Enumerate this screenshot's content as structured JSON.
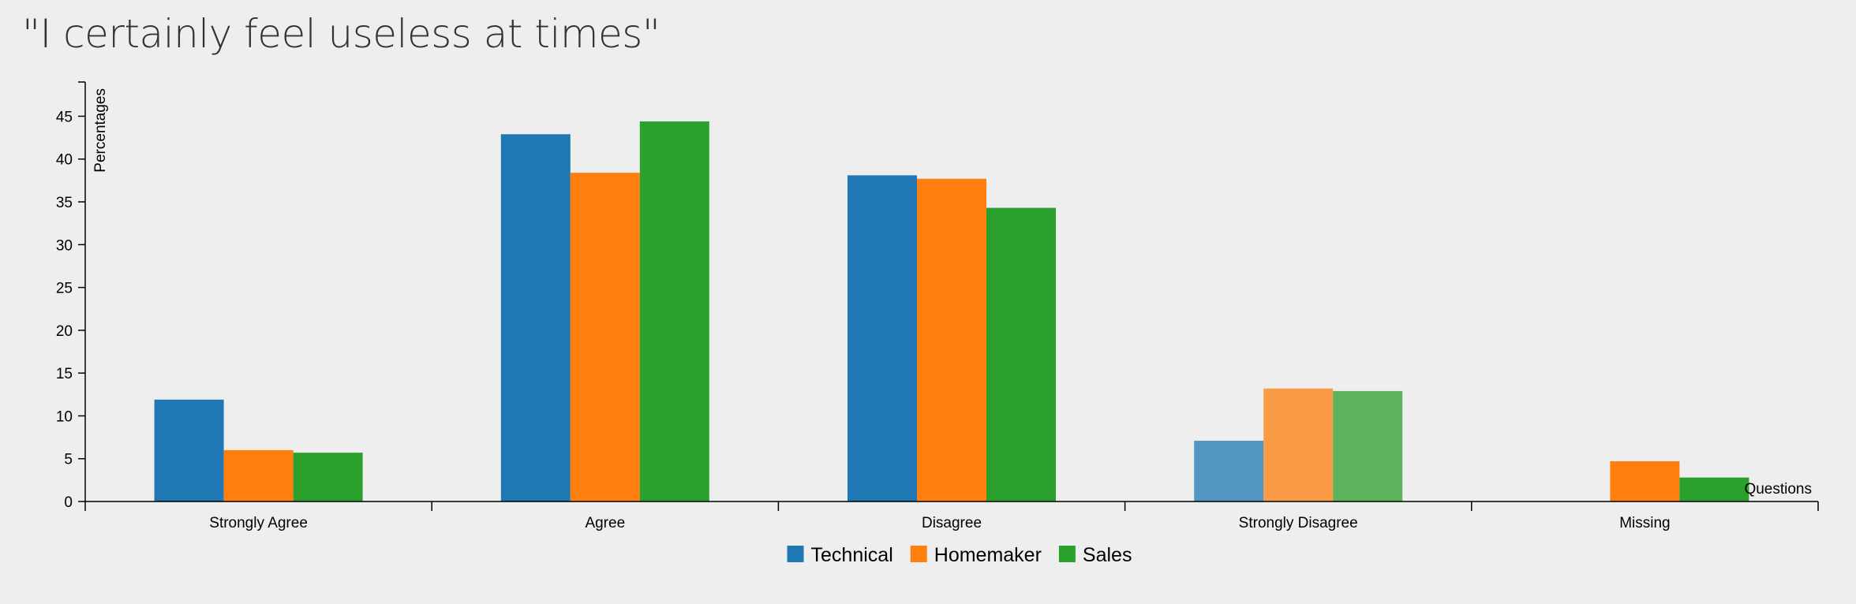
{
  "chart_data": {
    "type": "bar",
    "title": "\"I certainly feel useless at times\"",
    "xlabel": "Questions",
    "ylabel": "Percentages",
    "categories": [
      "Strongly Agree",
      "Agree",
      "Disagree",
      "Strongly Disagree",
      "Missing"
    ],
    "series": [
      {
        "name": "Technical",
        "color": "#1f77b4",
        "values": [
          11.9,
          42.9,
          38.1,
          7.1,
          0
        ]
      },
      {
        "name": "Homemaker",
        "color": "#ff7f0e",
        "values": [
          6.0,
          38.4,
          37.7,
          13.2,
          4.7
        ]
      },
      {
        "name": "Sales",
        "color": "#2ca02c",
        "values": [
          5.7,
          44.4,
          34.3,
          12.9,
          2.8
        ]
      }
    ],
    "highlighted_category": "Strongly Disagree",
    "ylim": [
      0,
      49
    ],
    "yticks": [
      0,
      5,
      10,
      15,
      20,
      25,
      30,
      35,
      40,
      45
    ],
    "grid": false,
    "legend_position": "bottom-center"
  }
}
